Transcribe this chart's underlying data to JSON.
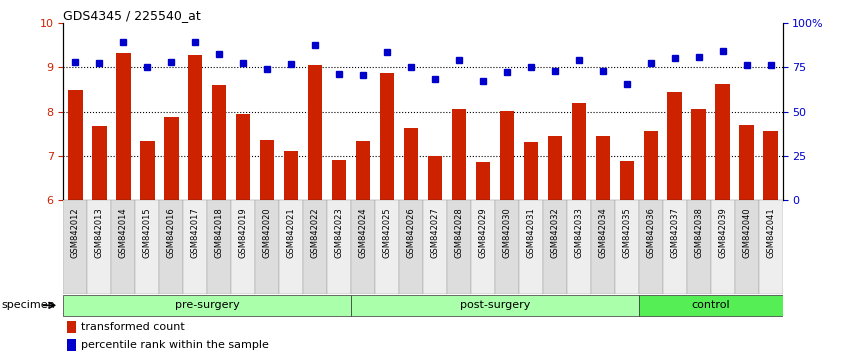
{
  "title": "GDS4345 / 225540_at",
  "specimens": [
    "GSM842012",
    "GSM842013",
    "GSM842014",
    "GSM842015",
    "GSM842016",
    "GSM842017",
    "GSM842018",
    "GSM842019",
    "GSM842020",
    "GSM842021",
    "GSM842022",
    "GSM842023",
    "GSM842024",
    "GSM842025",
    "GSM842026",
    "GSM842027",
    "GSM842028",
    "GSM842029",
    "GSM842030",
    "GSM842031",
    "GSM842032",
    "GSM842033",
    "GSM842034",
    "GSM842035",
    "GSM842036",
    "GSM842037",
    "GSM842038",
    "GSM842039",
    "GSM842040",
    "GSM842041"
  ],
  "bar_values": [
    8.48,
    7.67,
    9.32,
    7.33,
    7.87,
    9.28,
    8.6,
    7.95,
    7.35,
    7.1,
    9.05,
    6.9,
    7.33,
    8.87,
    7.62,
    7.0,
    8.05,
    6.87,
    8.02,
    7.32,
    7.45,
    8.2,
    7.45,
    6.88,
    7.55,
    8.43,
    8.05,
    8.62,
    7.7,
    7.57
  ],
  "percentile_values": [
    78.1,
    77.5,
    89.5,
    75.0,
    78.0,
    89.5,
    82.5,
    77.5,
    73.75,
    76.75,
    87.5,
    71.25,
    70.5,
    83.75,
    75.0,
    68.25,
    79.25,
    67.0,
    72.5,
    75.0,
    73.0,
    79.25,
    73.0,
    65.5,
    77.5,
    80.0,
    80.75,
    84.25,
    76.25,
    76.25
  ],
  "bar_color": "#cc2200",
  "dot_color": "#0000cc",
  "ylim_left": [
    6,
    10
  ],
  "ylim_right": [
    0,
    100
  ],
  "yticks_left": [
    6,
    7,
    8,
    9,
    10
  ],
  "yticks_right": [
    0,
    25,
    50,
    75,
    100
  ],
  "ytick_labels_right": [
    "0",
    "25",
    "50",
    "75",
    "100%"
  ],
  "group_labels": [
    "pre-surgery",
    "post-surgery",
    "control"
  ],
  "group_ends": [
    12,
    24,
    30
  ],
  "group_colors": [
    "#aaffaa",
    "#aaffaa",
    "#55ee55"
  ],
  "legend_bar_label": "transformed count",
  "legend_dot_label": "percentile rank within the sample",
  "specimen_label": "specimen",
  "tick_label_color_left": "#cc2200",
  "tick_label_color_right": "#0000cc"
}
